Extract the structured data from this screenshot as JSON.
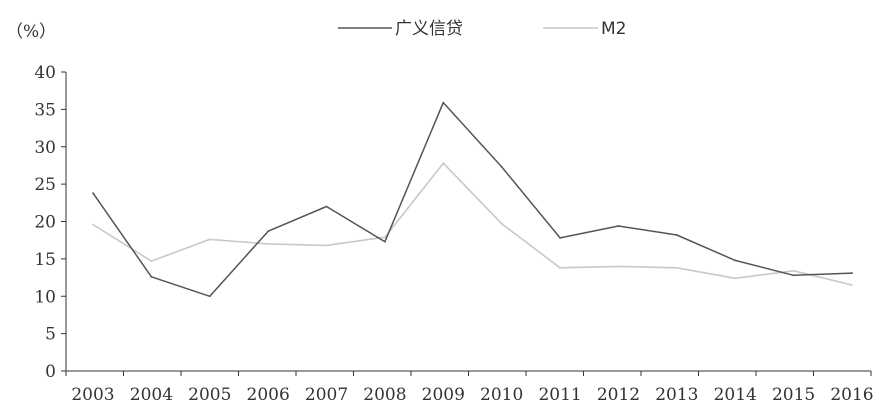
{
  "chart_data": {
    "type": "line",
    "unit_label": "（%）",
    "categories": [
      "2003",
      "2004",
      "2005",
      "2006",
      "2007",
      "2008",
      "2009",
      "2010",
      "2011",
      "2012",
      "2013",
      "2014",
      "2015",
      "2016"
    ],
    "ylim": [
      0,
      40
    ],
    "yticks": [
      0,
      5,
      10,
      15,
      20,
      25,
      30,
      35,
      40
    ],
    "grid": false,
    "legend": "top-center",
    "series": [
      {
        "name": "广义信贷",
        "color": "#555555",
        "values": [
          23.8,
          12.6,
          10.0,
          18.7,
          22.0,
          17.3,
          35.9,
          27.3,
          17.8,
          19.4,
          18.2,
          14.8,
          12.8,
          13.1
        ]
      },
      {
        "name": "M2",
        "color": "#c8c8c8",
        "values": [
          19.6,
          14.7,
          17.6,
          17.0,
          16.8,
          17.9,
          27.8,
          19.7,
          13.8,
          14.0,
          13.8,
          12.4,
          13.4,
          11.5
        ]
      }
    ]
  }
}
